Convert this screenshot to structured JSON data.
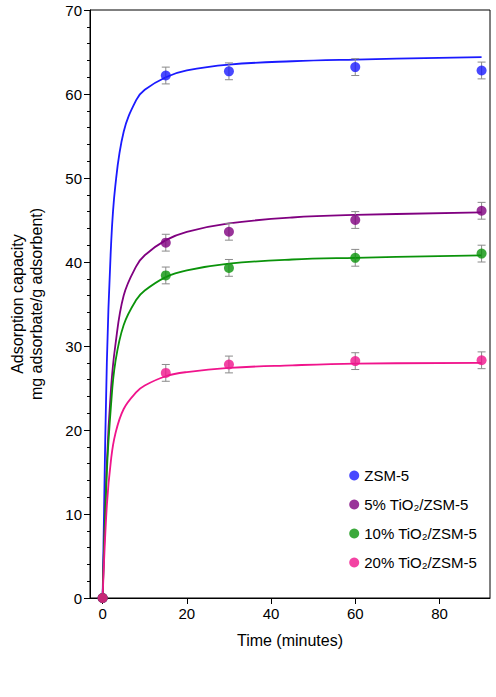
{
  "chart_data": {
    "type": "scatter",
    "xlabel": "Time (minutes)",
    "ylabel": "Adsorption capacity\nmg adsorbate/g adsorbent)",
    "xlim": [
      -3,
      92
    ],
    "xticks": [
      0,
      20,
      40,
      60,
      80
    ],
    "ylim": [
      0,
      70
    ],
    "yticks": [
      0,
      10,
      20,
      30,
      40,
      50,
      60,
      70
    ],
    "grid": false,
    "legend": "lower right",
    "marker": "circle",
    "line_style": "solid",
    "series": [
      {
        "name": "ZSM-5",
        "color": "#1a1aff",
        "x": [
          0,
          15,
          30,
          60,
          90
        ],
        "values": [
          0,
          62.2,
          62.7,
          63.2,
          62.8
        ],
        "errors": [
          0,
          1.0,
          1.0,
          1.0,
          1.0
        ],
        "fit": {
          "x": [
            0,
            1,
            2,
            3,
            5,
            8,
            10,
            15,
            20,
            30,
            45,
            60,
            90
          ],
          "values": [
            0,
            28,
            42,
            49,
            55.5,
            59.3,
            60.5,
            62.0,
            62.8,
            63.5,
            63.9,
            64.1,
            64.4
          ]
        }
      },
      {
        "name": "5% TiO₂/ZSM-5",
        "color": "#800080",
        "x": [
          0,
          15,
          30,
          60,
          90
        ],
        "values": [
          0,
          42.3,
          43.6,
          45.0,
          46.1
        ],
        "errors": [
          0,
          1.0,
          1.0,
          1.0,
          1.0
        ],
        "fit": {
          "x": [
            0,
            1,
            2,
            3,
            5,
            8,
            10,
            15,
            20,
            30,
            45,
            60,
            90
          ],
          "values": [
            0,
            16,
            25,
            30,
            36,
            39.5,
            40.8,
            42.6,
            43.6,
            44.6,
            45.3,
            45.6,
            45.9
          ]
        }
      },
      {
        "name": "10% TiO₂/ZSM-5",
        "color": "#0a930a",
        "x": [
          0,
          15,
          30,
          60,
          90
        ],
        "values": [
          0,
          38.4,
          39.3,
          40.5,
          41.0
        ],
        "errors": [
          0,
          1.0,
          1.0,
          1.0,
          1.0
        ],
        "fit": {
          "x": [
            0,
            1,
            2,
            3,
            5,
            8,
            10,
            15,
            20,
            30,
            45,
            60,
            90
          ],
          "values": [
            0,
            15,
            23,
            28,
            32.5,
            35.5,
            36.6,
            38.2,
            39.0,
            39.8,
            40.3,
            40.5,
            40.8
          ]
        }
      },
      {
        "name": "20% TiO₂/ZSM-5",
        "color": "#f0148c",
        "x": [
          0,
          15,
          30,
          60,
          90
        ],
        "values": [
          0,
          26.8,
          27.8,
          28.2,
          28.3
        ],
        "errors": [
          0,
          1.0,
          1.0,
          1.0,
          1.0
        ],
        "fit": {
          "x": [
            0,
            1,
            2,
            3,
            5,
            8,
            10,
            15,
            20,
            30,
            45,
            60,
            90
          ],
          "values": [
            0,
            11,
            16.5,
            19.5,
            22.5,
            24.5,
            25.3,
            26.4,
            26.9,
            27.4,
            27.7,
            27.9,
            28.0
          ]
        }
      }
    ]
  }
}
